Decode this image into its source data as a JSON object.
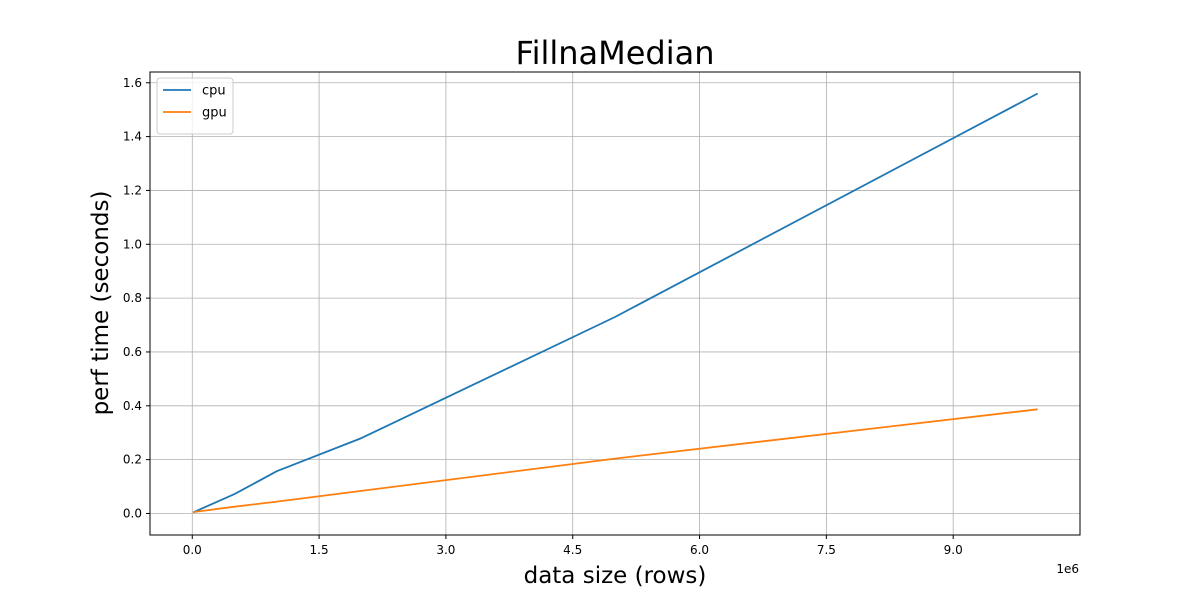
{
  "chart_data": {
    "type": "line",
    "title": "FillnaMedian",
    "xlabel": "data size (rows)",
    "ylabel": "perf time (seconds)",
    "x_offset_text": "1e6",
    "xlim": [
      -0.5,
      10.5
    ],
    "ylim": [
      -0.08,
      1.64
    ],
    "x_ticks": [
      0.0,
      1.5,
      3.0,
      4.5,
      6.0,
      7.5,
      9.0
    ],
    "x_tick_labels": [
      "0.0",
      "1.5",
      "3.0",
      "4.5",
      "6.0",
      "7.5",
      "9.0"
    ],
    "y_ticks": [
      0.0,
      0.2,
      0.4,
      0.6,
      0.8,
      1.0,
      1.2,
      1.4,
      1.6
    ],
    "y_tick_labels": [
      "0.0",
      "0.2",
      "0.4",
      "0.6",
      "0.8",
      "1.0",
      "1.2",
      "1.4",
      "1.6"
    ],
    "grid": true,
    "legend_position": "top-left",
    "series": [
      {
        "name": "cpu",
        "color": "#1f77b4",
        "x": [
          0.01,
          0.5,
          1.0,
          2.0,
          5.0,
          10.0
        ],
        "y": [
          0.004,
          0.072,
          0.157,
          0.28,
          0.73,
          1.56
        ]
      },
      {
        "name": "gpu",
        "color": "#ff7f0e",
        "x": [
          0.01,
          0.5,
          1.0,
          2.0,
          5.0,
          10.0
        ],
        "y": [
          0.005,
          0.025,
          0.044,
          0.084,
          0.204,
          0.387
        ]
      }
    ]
  }
}
